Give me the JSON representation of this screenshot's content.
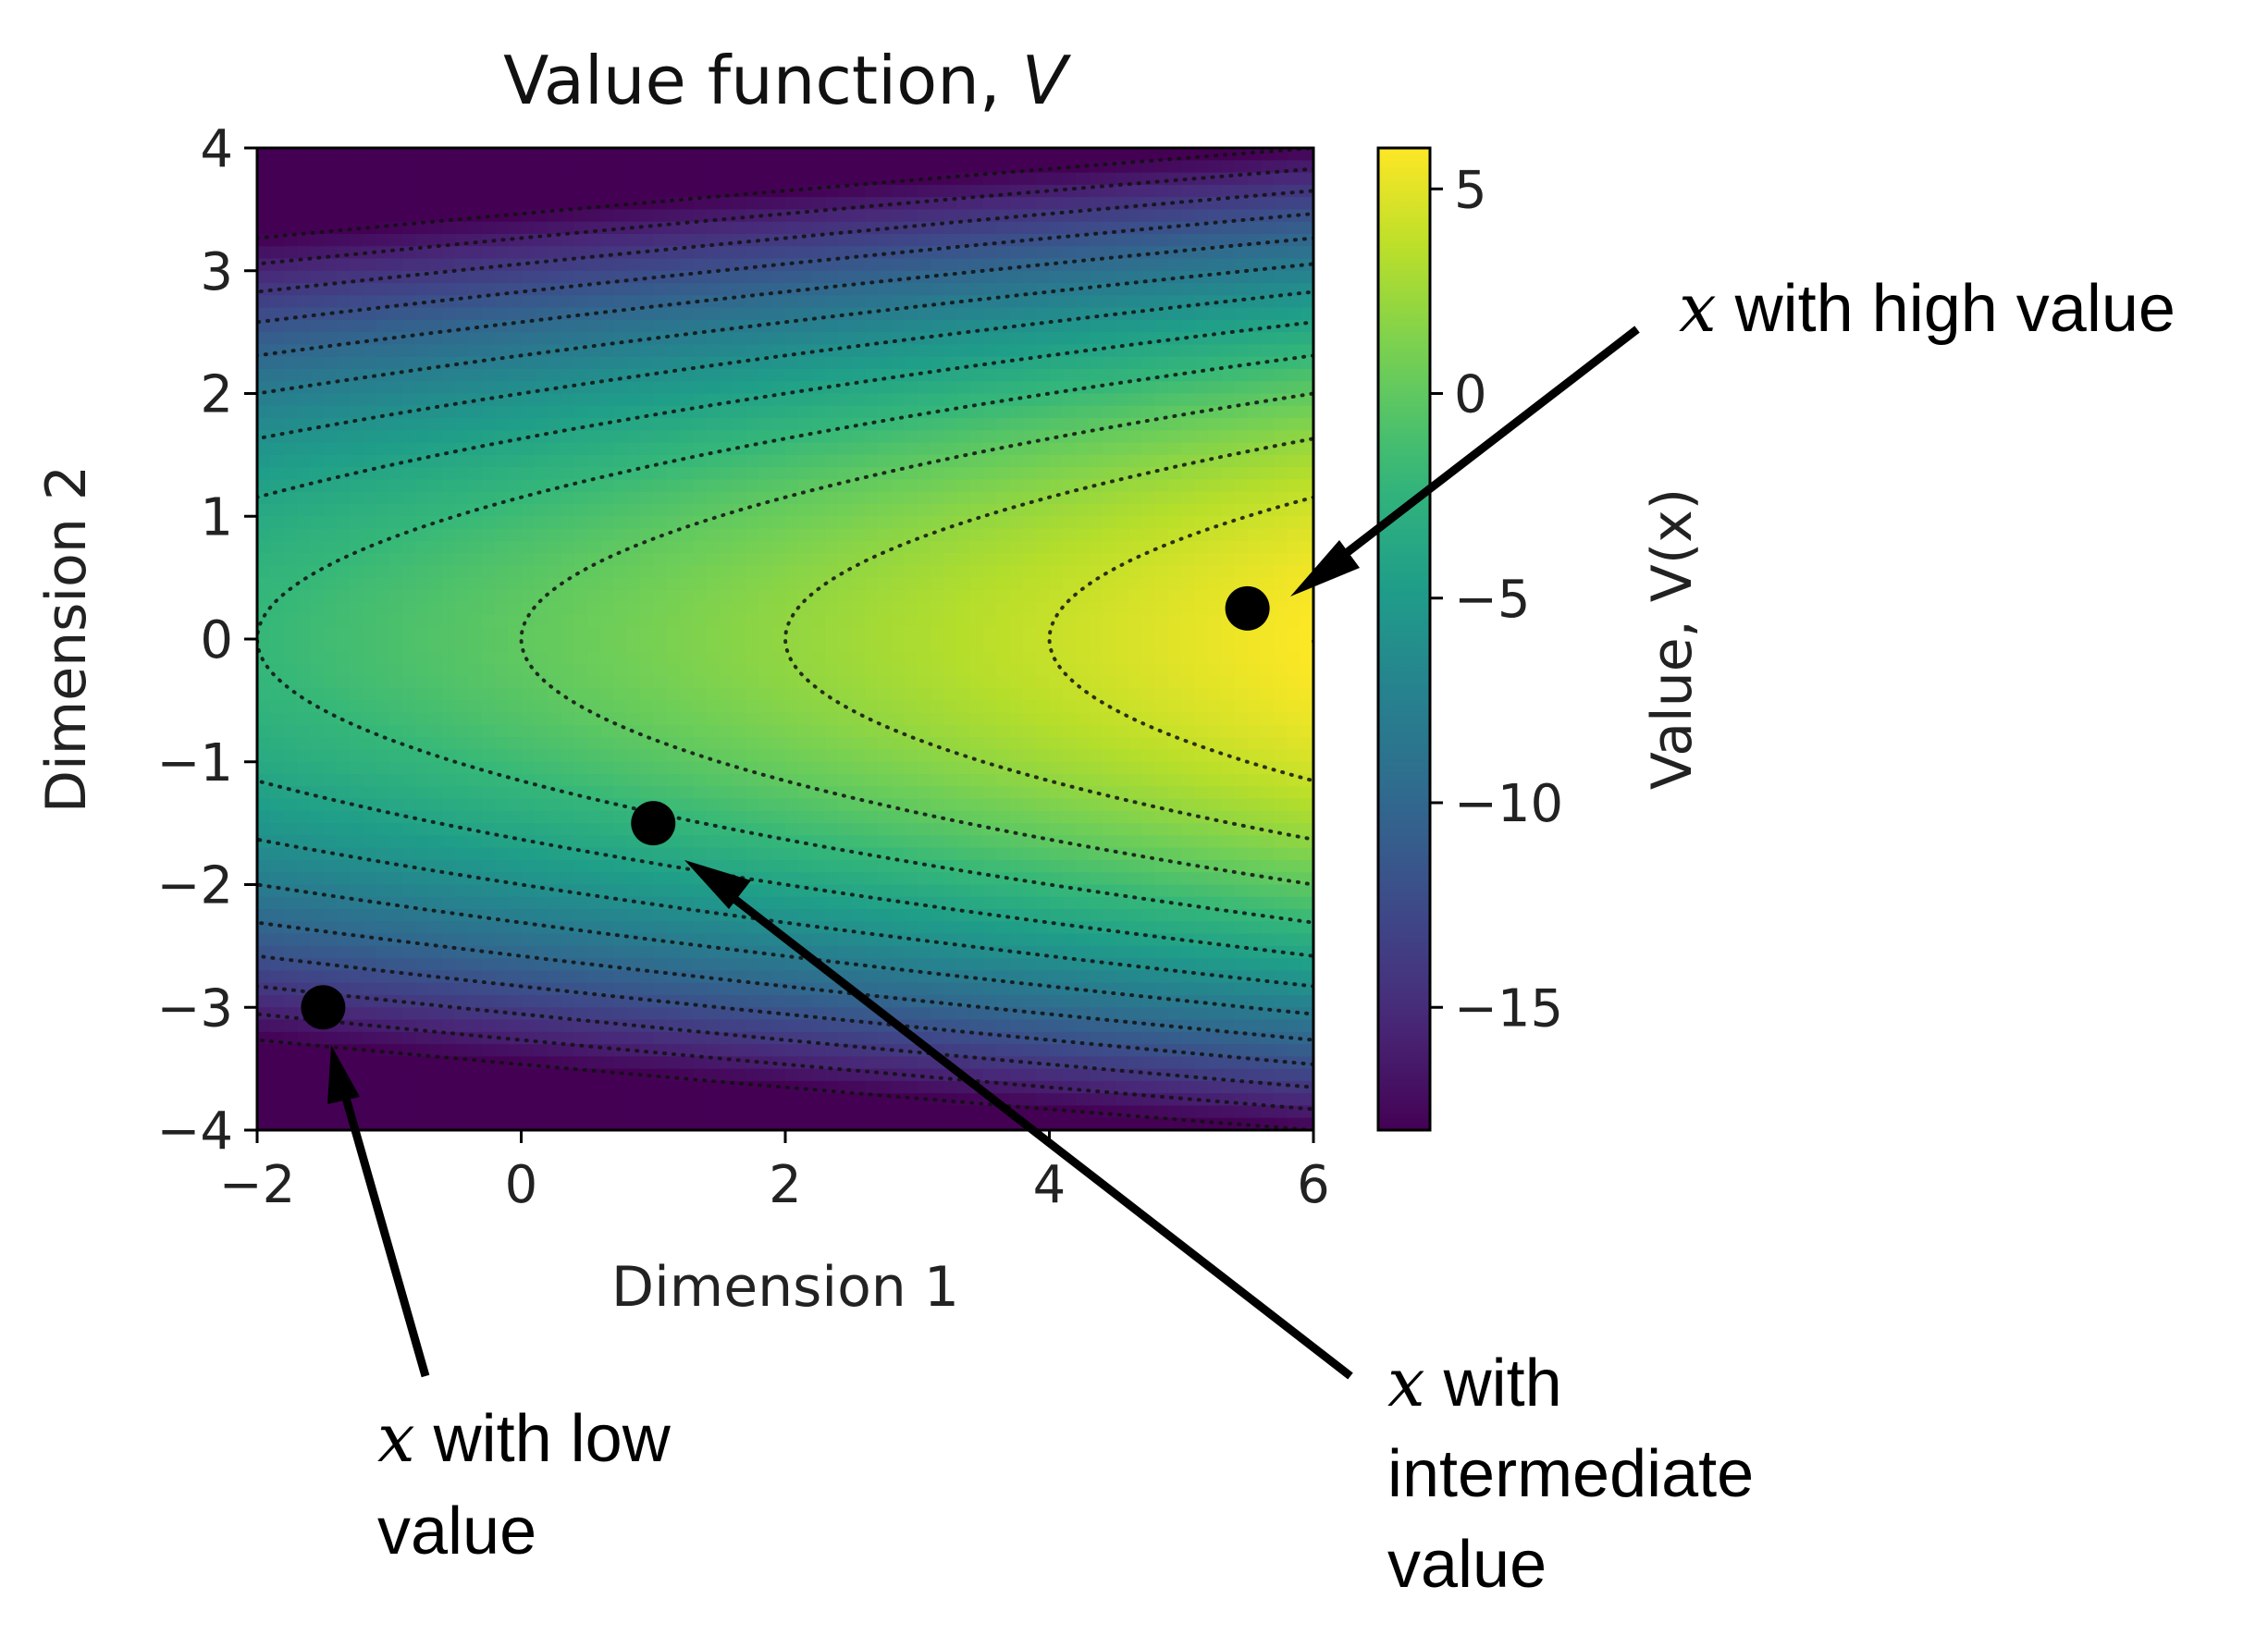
{
  "chart_data": {
    "type": "heatmap",
    "title": "Value function, ",
    "title_var": "V",
    "xlabel": "Dimension 1",
    "ylabel": "Dimension 2",
    "xlim": [
      -2,
      6
    ],
    "ylim": [
      -4,
      4
    ],
    "xticks": [
      -2,
      0,
      2,
      4,
      6
    ],
    "yticks": [
      4,
      3,
      2,
      1,
      0,
      -1,
      -2,
      -3,
      -4
    ],
    "colormap": "viridis",
    "contour_style": "dotted",
    "colorbar": {
      "label": "Value, V(x)",
      "range": [
        -18,
        6
      ],
      "ticks": [
        5,
        0,
        -5,
        -10,
        -15
      ]
    },
    "points": [
      {
        "x": 5.5,
        "y": 0.25
      },
      {
        "x": 1.0,
        "y": -1.5
      },
      {
        "x": -1.5,
        "y": -3.0
      }
    ],
    "annotations": [
      {
        "var": "x",
        "lines": [
          " with high value"
        ]
      },
      {
        "var": "x",
        "lines": [
          " with",
          "intermediate",
          "value"
        ]
      },
      {
        "var": "x",
        "lines": [
          " with low",
          "value"
        ]
      }
    ]
  },
  "colors": {
    "viridis": [
      "#440154",
      "#482878",
      "#3e4989",
      "#31688e",
      "#26828e",
      "#1f9e89",
      "#35b779",
      "#6ece58",
      "#b5de2b",
      "#fde725"
    ],
    "marker": "#000000",
    "arrow": "#000000"
  }
}
